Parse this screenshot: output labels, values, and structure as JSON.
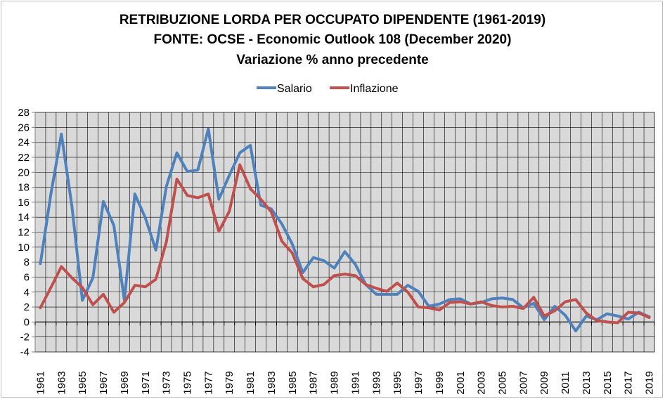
{
  "chart_data": {
    "type": "line",
    "title": [
      "RETRIBUZIONE LORDA PER OCCUPATO DIPENDENTE (1961-2019)",
      "FONTE: OCSE - Economic Outlook 108 (December 2020)",
      "Variazione % anno precedente"
    ],
    "xlabel": "",
    "ylabel": "",
    "ylim": [
      -4,
      28
    ],
    "yticks": [
      -4,
      -2,
      0,
      2,
      4,
      6,
      8,
      10,
      12,
      14,
      16,
      18,
      20,
      22,
      24,
      26,
      28
    ],
    "x": [
      1961,
      1962,
      1963,
      1964,
      1965,
      1966,
      1967,
      1968,
      1969,
      1970,
      1971,
      1972,
      1973,
      1974,
      1975,
      1976,
      1977,
      1978,
      1979,
      1980,
      1981,
      1982,
      1983,
      1984,
      1985,
      1986,
      1987,
      1988,
      1989,
      1990,
      1991,
      1992,
      1993,
      1994,
      1995,
      1996,
      1997,
      1998,
      1999,
      2000,
      2001,
      2002,
      2003,
      2004,
      2005,
      2006,
      2007,
      2008,
      2009,
      2010,
      2011,
      2012,
      2013,
      2014,
      2015,
      2016,
      2017,
      2018,
      2019
    ],
    "xtick_labels": [
      "1961",
      "1963",
      "1965",
      "1967",
      "1969",
      "1971",
      "1973",
      "1975",
      "1977",
      "1979",
      "1981",
      "1983",
      "1985",
      "1987",
      "1989",
      "1991",
      "1993",
      "1995",
      "1997",
      "1999",
      "2001",
      "2003",
      "2005",
      "2007",
      "2009",
      "2011",
      "2013",
      "2015",
      "2017",
      "2019"
    ],
    "grid": true,
    "legend_position": "top",
    "series": [
      {
        "name": "Salario",
        "color": "#4f81bd",
        "values": [
          7.8,
          17.1,
          25.1,
          15.5,
          2.9,
          5.9,
          16.1,
          12.9,
          2.9,
          17.1,
          13.9,
          9.6,
          18.1,
          22.6,
          20.1,
          20.3,
          25.8,
          16.4,
          19.6,
          22.6,
          23.6,
          15.6,
          15.1,
          13.1,
          10.4,
          6.6,
          8.6,
          8.2,
          7.2,
          9.4,
          7.7,
          5.0,
          3.7,
          3.7,
          3.7,
          4.9,
          4.1,
          2.1,
          2.4,
          3.0,
          3.1,
          2.4,
          2.6,
          3.1,
          3.2,
          3.0,
          1.9,
          2.5,
          0.3,
          2.1,
          0.9,
          -1.2,
          0.8,
          0.3,
          1.1,
          0.8,
          0.4,
          1.3,
          0.7
        ]
      },
      {
        "name": "Inflazione",
        "color": "#c0504d",
        "values": [
          1.9,
          4.6,
          7.4,
          5.9,
          4.6,
          2.3,
          3.7,
          1.3,
          2.6,
          4.9,
          4.7,
          5.7,
          10.7,
          19.1,
          16.9,
          16.6,
          17.1,
          12.1,
          14.8,
          21.0,
          17.8,
          16.4,
          14.7,
          10.8,
          9.2,
          5.8,
          4.7,
          5.0,
          6.2,
          6.4,
          6.2,
          5.0,
          4.5,
          4.1,
          5.2,
          4.0,
          2.0,
          1.9,
          1.6,
          2.6,
          2.7,
          2.4,
          2.7,
          2.2,
          2.0,
          2.1,
          1.8,
          3.3,
          0.8,
          1.5,
          2.7,
          3.0,
          1.2,
          0.2,
          0.0,
          -0.1,
          1.3,
          1.2,
          0.6
        ]
      }
    ]
  }
}
